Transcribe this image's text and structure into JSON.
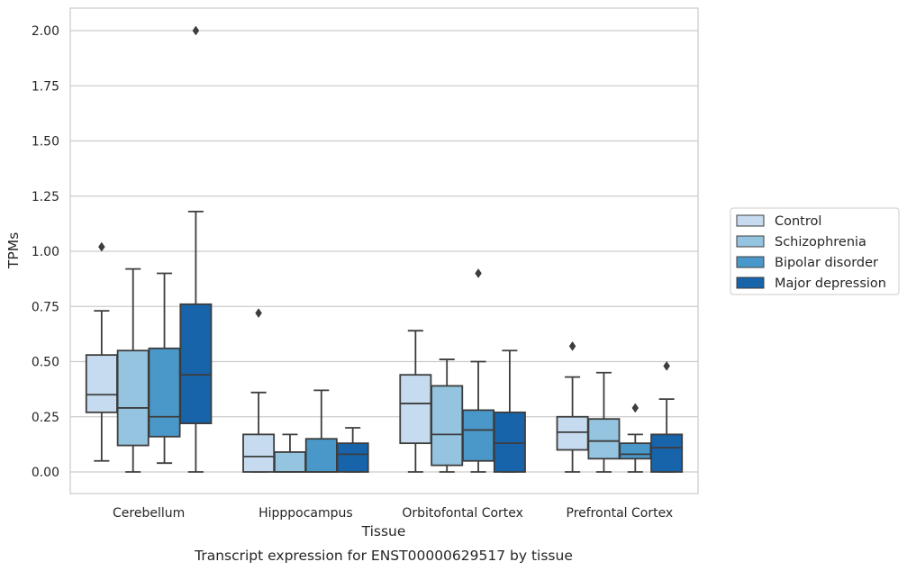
{
  "chart_data": {
    "type": "boxplot",
    "title": "",
    "xlabel": "Tissue",
    "ylabel": "TPMs",
    "caption": "Transcript expression for ENST00000629517 by tissue",
    "ylim": [
      -0.1,
      2.1
    ],
    "yticks": [
      "0.00",
      "0.25",
      "0.50",
      "0.75",
      "1.00",
      "1.25",
      "1.50",
      "1.75",
      "2.00"
    ],
    "grid": "horizontal",
    "legend_position": "right",
    "categories": [
      "Cerebellum",
      "Hipppocampus",
      "Orbitofontal Cortex",
      "Prefrontal Cortex"
    ],
    "series": [
      {
        "name": "Control",
        "color": "#c6dbef",
        "boxes": [
          {
            "whislo": 0.05,
            "q1": 0.27,
            "med": 0.35,
            "q3": 0.53,
            "whishi": 0.73,
            "fliers": [
              1.02
            ]
          },
          {
            "whislo": 0.0,
            "q1": 0.0,
            "med": 0.07,
            "q3": 0.17,
            "whishi": 0.36,
            "fliers": [
              0.72
            ]
          },
          {
            "whislo": 0.0,
            "q1": 0.13,
            "med": 0.31,
            "q3": 0.44,
            "whishi": 0.64,
            "fliers": []
          },
          {
            "whislo": 0.0,
            "q1": 0.1,
            "med": 0.18,
            "q3": 0.25,
            "whishi": 0.43,
            "fliers": [
              0.57
            ]
          }
        ]
      },
      {
        "name": "Schizophrenia",
        "color": "#94c4df",
        "boxes": [
          {
            "whislo": 0.0,
            "q1": 0.12,
            "med": 0.29,
            "q3": 0.55,
            "whishi": 0.92,
            "fliers": []
          },
          {
            "whislo": 0.0,
            "q1": 0.0,
            "med": 0.0,
            "q3": 0.09,
            "whishi": 0.17,
            "fliers": []
          },
          {
            "whislo": 0.0,
            "q1": 0.03,
            "med": 0.17,
            "q3": 0.39,
            "whishi": 0.51,
            "fliers": []
          },
          {
            "whislo": 0.0,
            "q1": 0.06,
            "med": 0.14,
            "q3": 0.24,
            "whishi": 0.45,
            "fliers": []
          }
        ]
      },
      {
        "name": "Bipolar disorder",
        "color": "#4a98c9",
        "boxes": [
          {
            "whislo": 0.04,
            "q1": 0.16,
            "med": 0.25,
            "q3": 0.56,
            "whishi": 0.9,
            "fliers": []
          },
          {
            "whislo": 0.0,
            "q1": 0.0,
            "med": 0.0,
            "q3": 0.15,
            "whishi": 0.37,
            "fliers": []
          },
          {
            "whislo": 0.0,
            "q1": 0.05,
            "med": 0.19,
            "q3": 0.28,
            "whishi": 0.5,
            "fliers": [
              0.9
            ]
          },
          {
            "whislo": 0.0,
            "q1": 0.06,
            "med": 0.08,
            "q3": 0.13,
            "whishi": 0.17,
            "fliers": [
              0.29
            ]
          }
        ]
      },
      {
        "name": "Major depression",
        "color": "#1764ab",
        "boxes": [
          {
            "whislo": 0.0,
            "q1": 0.22,
            "med": 0.44,
            "q3": 0.76,
            "whishi": 1.18,
            "fliers": [
              2.0
            ]
          },
          {
            "whislo": 0.0,
            "q1": 0.0,
            "med": 0.08,
            "q3": 0.13,
            "whishi": 0.2,
            "fliers": []
          },
          {
            "whislo": 0.0,
            "q1": 0.0,
            "med": 0.13,
            "q3": 0.27,
            "whishi": 0.55,
            "fliers": []
          },
          {
            "whislo": 0.0,
            "q1": 0.0,
            "med": 0.11,
            "q3": 0.17,
            "whishi": 0.33,
            "fliers": [
              0.48
            ]
          }
        ]
      }
    ]
  }
}
